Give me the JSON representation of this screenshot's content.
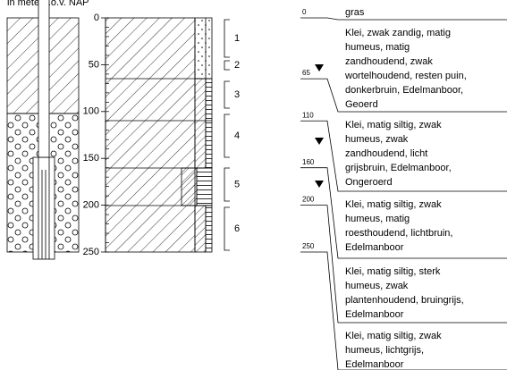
{
  "header": {
    "axis_title": "in meter t.o.v. NAP"
  },
  "depth_axis": {
    "ticks": [
      0,
      50,
      100,
      150,
      200,
      250
    ]
  },
  "samples": [
    "1",
    "2",
    "3",
    "4",
    "5",
    "6"
  ],
  "depth_labels": [
    0,
    65,
    110,
    160,
    200,
    250
  ],
  "descriptions": [
    [
      "gras"
    ],
    [
      "Klei, zwak zandig, matig",
      "humeus, matig",
      "zandhoudend, zwak",
      "wortelhoudend, resten puin,",
      "donkerbruin, Edelmanboor,",
      "Geoerd"
    ],
    [
      "Klei, matig siltig, zwak",
      "humeus, zwak",
      "zandhoudend, licht",
      "grijsbruin, Edelmanboor,",
      "Ongeroerd"
    ],
    [
      "Klei, matig siltig, zwak",
      "humeus, matig",
      "roesthoudend, lichtbruin,",
      "Edelmanboor"
    ],
    [
      "Klei, matig siltig, sterk",
      "humeus, zwak",
      "plantenhoudend, bruingrijs,",
      "Edelmanboor"
    ],
    [
      "Klei, matig siltig, zwak",
      "humeus, lichtgrijs,",
      "Edelmanboor"
    ]
  ]
}
